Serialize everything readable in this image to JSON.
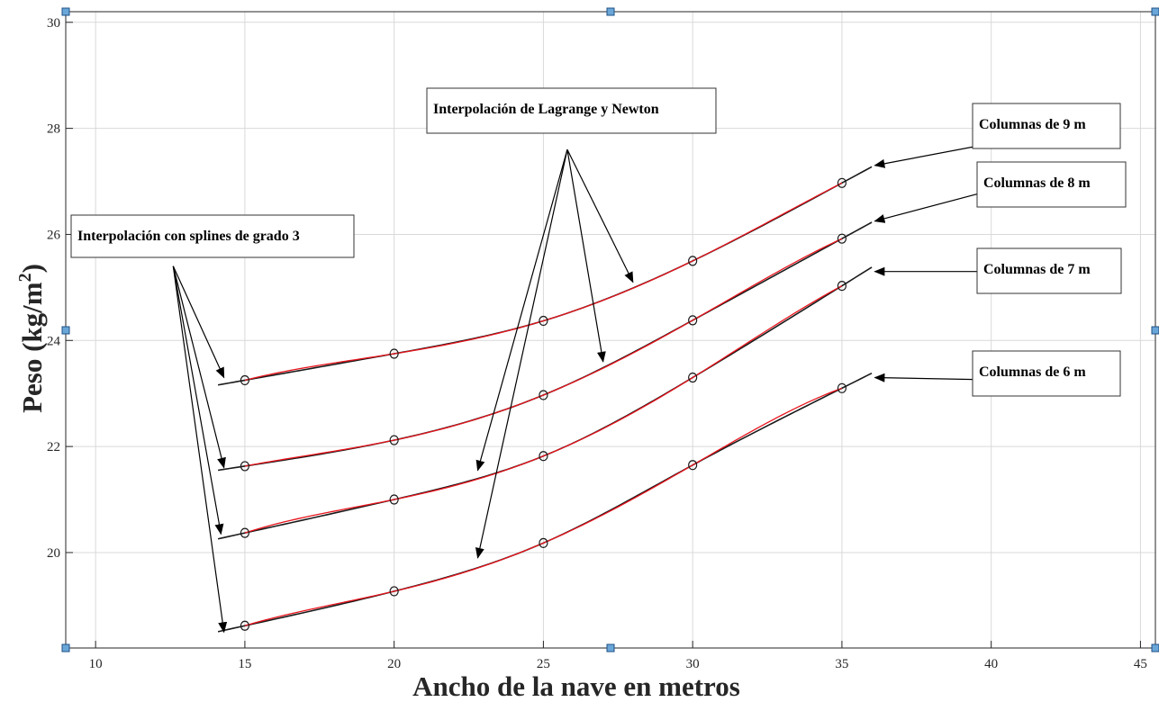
{
  "chart_data": {
    "type": "line",
    "xlabel": "Ancho de la nave en metros",
    "ylabel": "Peso (kg/m",
    "ylabel_sup": "2",
    "ylabel_close": ")",
    "xlim": [
      9,
      45.5
    ],
    "ylim": [
      18.2,
      30.2
    ],
    "xticks": [
      10,
      15,
      20,
      25,
      30,
      35,
      40,
      45
    ],
    "yticks": [
      20,
      22,
      24,
      26,
      28,
      30
    ],
    "grid": true,
    "colors": {
      "spline": "#1a1a1a",
      "lagrange": "#e8141c",
      "marker": "#1a1a1a",
      "grid": "#d9d9d9"
    },
    "series": [
      {
        "name": "Columnas de 9 m",
        "x": [
          15,
          20,
          25,
          30,
          35
        ],
        "y": [
          23.25,
          23.75,
          24.37,
          25.5,
          26.97
        ],
        "spline_x_start": 14.1,
        "spline_x_end": 36
      },
      {
        "name": "Columnas de 8 m",
        "x": [
          15,
          20,
          25,
          30,
          35
        ],
        "y": [
          21.63,
          22.12,
          22.97,
          24.38,
          25.92
        ],
        "spline_x_start": 14.1,
        "spline_x_end": 36
      },
      {
        "name": "Columnas de 7 m",
        "x": [
          15,
          20,
          25,
          30,
          35
        ],
        "y": [
          20.37,
          21.0,
          21.82,
          23.3,
          25.03
        ],
        "spline_x_start": 14.1,
        "spline_x_end": 36
      },
      {
        "name": "Columnas de 6 m",
        "x": [
          15,
          20,
          25,
          30,
          35
        ],
        "y": [
          18.62,
          19.27,
          20.18,
          21.65,
          23.1
        ],
        "spline_x_start": 14.1,
        "spline_x_end": 36
      }
    ],
    "annotations": [
      {
        "id": "splines",
        "text": "Interpolación con splines de grado 3",
        "arrow_from": [
          12.6,
          25.4
        ],
        "arrow_to": [
          [
            14.3,
            23.3
          ],
          [
            14.3,
            21.6
          ],
          [
            14.2,
            20.35
          ],
          [
            14.3,
            18.5
          ]
        ]
      },
      {
        "id": "lagrange",
        "text": "Interpolación de Lagrange y Newton",
        "arrow_from": [
          25.8,
          27.6
        ],
        "arrow_to": [
          [
            28.0,
            25.1
          ],
          [
            27.0,
            23.6
          ],
          [
            22.8,
            21.55
          ],
          [
            22.8,
            19.9
          ]
        ]
      },
      {
        "id": "col9",
        "text": "Columnas de 9 m",
        "arrow_from": [
          40.8,
          27.8
        ],
        "arrow_to": [
          [
            36.1,
            27.3
          ]
        ]
      },
      {
        "id": "col8",
        "text": "Columnas de 8 m",
        "arrow_from": [
          40.8,
          26.95
        ],
        "arrow_to": [
          [
            36.1,
            26.25
          ]
        ]
      },
      {
        "id": "col7",
        "text": "Columnas de 7 m",
        "arrow_from": [
          40.8,
          25.3
        ],
        "arrow_to": [
          [
            36.1,
            25.3
          ]
        ]
      },
      {
        "id": "col6",
        "text": "Columnas de 6 m",
        "arrow_from": [
          40.8,
          23.25
        ],
        "arrow_to": [
          [
            36.1,
            23.3
          ]
        ]
      }
    ]
  }
}
